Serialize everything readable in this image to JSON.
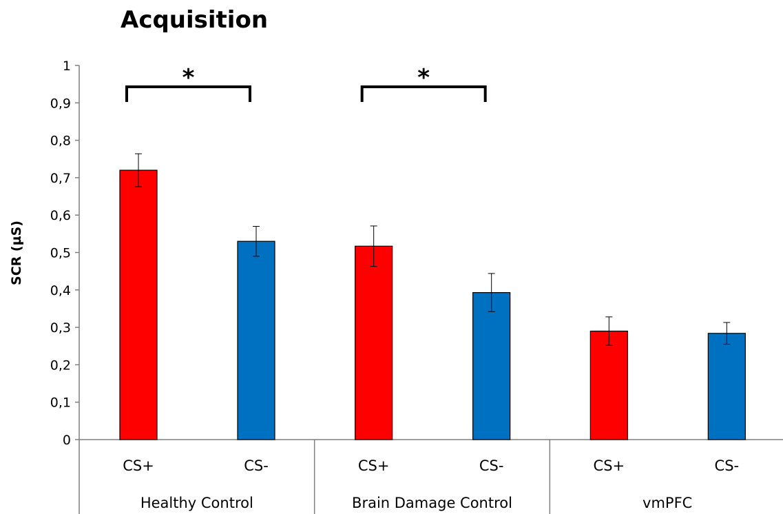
{
  "chart_data": {
    "type": "bar",
    "title": "Acquisition",
    "ylabel": "SCR (µS)",
    "xlabel": "",
    "ylim": [
      0,
      1
    ],
    "yticks": [
      "0",
      "0,1",
      "0,2",
      "0,3",
      "0,4",
      "0,5",
      "0,6",
      "0,7",
      "0,8",
      "0,9",
      "1"
    ],
    "grid": false,
    "legend": "none",
    "groups": [
      {
        "name": "Healthy Control",
        "bars": [
          {
            "label": "CS+",
            "value": 0.72,
            "error": 0.044,
            "color": "#ff0000"
          },
          {
            "label": "CS-",
            "value": 0.53,
            "error": 0.04,
            "color": "#0070c0"
          }
        ],
        "significance": "*"
      },
      {
        "name": "Brain Damage Control",
        "bars": [
          {
            "label": "CS+",
            "value": 0.517,
            "error": 0.054,
            "color": "#ff0000"
          },
          {
            "label": "CS-",
            "value": 0.393,
            "error": 0.051,
            "color": "#0070c0"
          }
        ],
        "significance": "*"
      },
      {
        "name": "vmPFC",
        "bars": [
          {
            "label": "CS+",
            "value": 0.29,
            "error": 0.038,
            "color": "#ff0000"
          },
          {
            "label": "CS-",
            "value": 0.284,
            "error": 0.029,
            "color": "#0070c0"
          }
        ],
        "significance": ""
      }
    ]
  }
}
